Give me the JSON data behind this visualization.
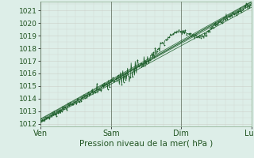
{
  "xlabel": "Pression niveau de la mer( hPa )",
  "ylim": [
    1011.8,
    1021.7
  ],
  "xlim": [
    0,
    72
  ],
  "yticks": [
    1012,
    1013,
    1014,
    1015,
    1016,
    1017,
    1018,
    1019,
    1020,
    1021
  ],
  "xtick_positions": [
    0,
    24,
    48,
    72
  ],
  "xtick_labels": [
    "Ven",
    "Sam",
    "Dim",
    "Lun"
  ],
  "bg_color": "#ddeee8",
  "grid_color": "#c8d8c8",
  "line_color": "#1a5c28",
  "vline_color": "#556655"
}
